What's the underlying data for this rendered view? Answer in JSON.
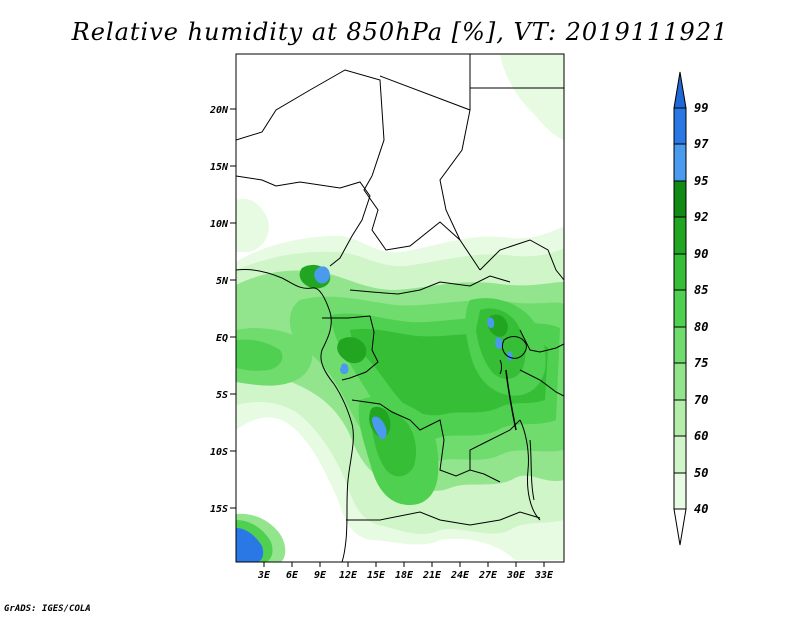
{
  "title": "Relative humidity at 850hPa [%], VT: 2019111921",
  "credit": "GrADS: IGES/COLA",
  "map": {
    "lat_labels": [
      "20N",
      "15N",
      "10N",
      "5N",
      "EQ",
      "5S",
      "10S",
      "15S"
    ],
    "lon_labels": [
      "3E",
      "6E",
      "9E",
      "12E",
      "15E",
      "18E",
      "21E",
      "24E",
      "27E",
      "30E",
      "33E"
    ]
  },
  "colorbar": {
    "levels": [
      "99",
      "97",
      "95",
      "92",
      "90",
      "85",
      "80",
      "75",
      "70",
      "60",
      "50",
      "40"
    ],
    "colors": [
      "#2067d8",
      "#2a78e6",
      "#4a9aee",
      "#108a12",
      "#22a622",
      "#36be36",
      "#50d050",
      "#70dc6e",
      "#93e58d",
      "#b4eeaa",
      "#cff5c8",
      "#e6fbe2",
      "#ffffff"
    ]
  }
}
